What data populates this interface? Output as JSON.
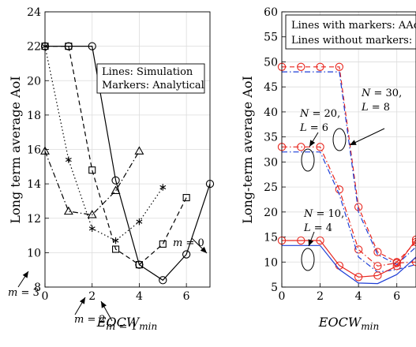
{
  "chart_data": [
    {
      "type": "line",
      "ylabel": "Long term average AoI",
      "xlabel": "EOCW",
      "xlabel_sub": "min",
      "xlim": [
        0,
        7
      ],
      "ylim": [
        8,
        24
      ],
      "xticks": [
        0,
        2,
        4,
        6
      ],
      "yticks": [
        8,
        10,
        12,
        14,
        16,
        18,
        20,
        22,
        24
      ],
      "grid": true,
      "legend": {
        "lines": [
          "Lines: Simulation",
          "Markers: Analytical"
        ],
        "placement": "top-right"
      },
      "series": [
        {
          "name": "m = 0",
          "style": "solid",
          "marker": "circle",
          "x": [
            0,
            1,
            2,
            3,
            4,
            5,
            6,
            7
          ],
          "y": [
            22.0,
            22.0,
            22.0,
            14.2,
            9.3,
            8.4,
            9.9,
            14.0
          ]
        },
        {
          "name": "m = 1",
          "style": "dashed",
          "marker": "square",
          "x": [
            0,
            1,
            2,
            3,
            4,
            5,
            6
          ],
          "y": [
            22.0,
            22.0,
            14.8,
            10.2,
            9.3,
            10.5,
            13.2
          ]
        },
        {
          "name": "m = 2",
          "style": "dotted",
          "marker": "asterisk",
          "x": [
            0,
            1,
            2,
            3,
            4,
            5
          ],
          "y": [
            22.0,
            15.4,
            11.4,
            10.7,
            11.8,
            13.8
          ]
        },
        {
          "name": "m = 3",
          "style": "dashdot",
          "marker": "triangle",
          "x": [
            0,
            1,
            2,
            3,
            4
          ],
          "y": [
            15.9,
            12.4,
            12.2,
            13.6,
            15.9
          ]
        }
      ],
      "annotations": [
        {
          "text": "m = 0",
          "x": 6.1,
          "y": 14.3
        },
        {
          "text": "m = 1",
          "x": 2.9,
          "y": 8.3
        },
        {
          "text": "m = 2",
          "x": 1.4,
          "y": 9.9
        },
        {
          "text": "m = 3",
          "x": 0.35,
          "y": 11.5
        }
      ]
    },
    {
      "type": "line",
      "ylabel": "Long-term average AoI",
      "xlabel": "EOCW",
      "xlabel_sub": "min",
      "xlim": [
        0,
        7
      ],
      "ylim": [
        5,
        60
      ],
      "xticks": [
        0,
        2,
        4,
        6
      ],
      "yticks": [
        5,
        10,
        15,
        20,
        25,
        30,
        35,
        40,
        45,
        50,
        55,
        60
      ],
      "grid": true,
      "legend": {
        "lines": [
          "Lines with markers: AAoI",
          "Lines without markers: LB"
        ],
        "placement": "top"
      },
      "groups": [
        {
          "label_lines": [
            "N = 30,",
            "L = 8"
          ],
          "series": [
            {
              "style": "dashed",
              "color": "#e8261e",
              "marker": "circle",
              "x": [
                0,
                1,
                2,
                3,
                4,
                5,
                6,
                7
              ],
              "y": [
                49,
                49,
                49,
                49,
                21,
                12,
                10,
                14
              ]
            },
            {
              "style": "dashdot",
              "color": "#1f3fd6",
              "marker": "none",
              "x": [
                0,
                1,
                2,
                3,
                4,
                5,
                6,
                7
              ],
              "y": [
                48,
                48,
                48,
                48,
                20,
                11.5,
                9.5,
                13
              ]
            }
          ]
        },
        {
          "label_lines": [
            "N = 20,",
            "L = 6"
          ],
          "series": [
            {
              "style": "dashdot",
              "color": "#e8261e",
              "marker": "circle",
              "x": [
                0,
                1,
                2,
                3,
                4,
                5,
                6,
                7
              ],
              "y": [
                33,
                33,
                33,
                24.5,
                12.5,
                9.2,
                9.8,
                10
              ]
            },
            {
              "style": "dashdot",
              "color": "#1f3fd6",
              "marker": "none",
              "x": [
                0,
                1,
                2,
                3,
                4,
                5,
                6,
                7
              ],
              "y": [
                32,
                32,
                32,
                23.5,
                11,
                8,
                8.5,
                9.5
              ]
            }
          ]
        },
        {
          "label_lines": [
            "N = 10,",
            "L = 4"
          ],
          "series": [
            {
              "style": "solid",
              "color": "#e8261e",
              "marker": "circle",
              "x": [
                0,
                1,
                2,
                3,
                4,
                5,
                6,
                7
              ],
              "y": [
                14.3,
                14.3,
                14.3,
                9.3,
                7.0,
                7.3,
                9.2,
                14.5
              ]
            },
            {
              "style": "solid",
              "color": "#1f3fd6",
              "marker": "none",
              "x": [
                0,
                1,
                2,
                3,
                4,
                5,
                6,
                7
              ],
              "y": [
                13.3,
                13.3,
                13.3,
                8.5,
                5.8,
                5.7,
                7.5,
                11
              ]
            }
          ]
        }
      ]
    }
  ]
}
